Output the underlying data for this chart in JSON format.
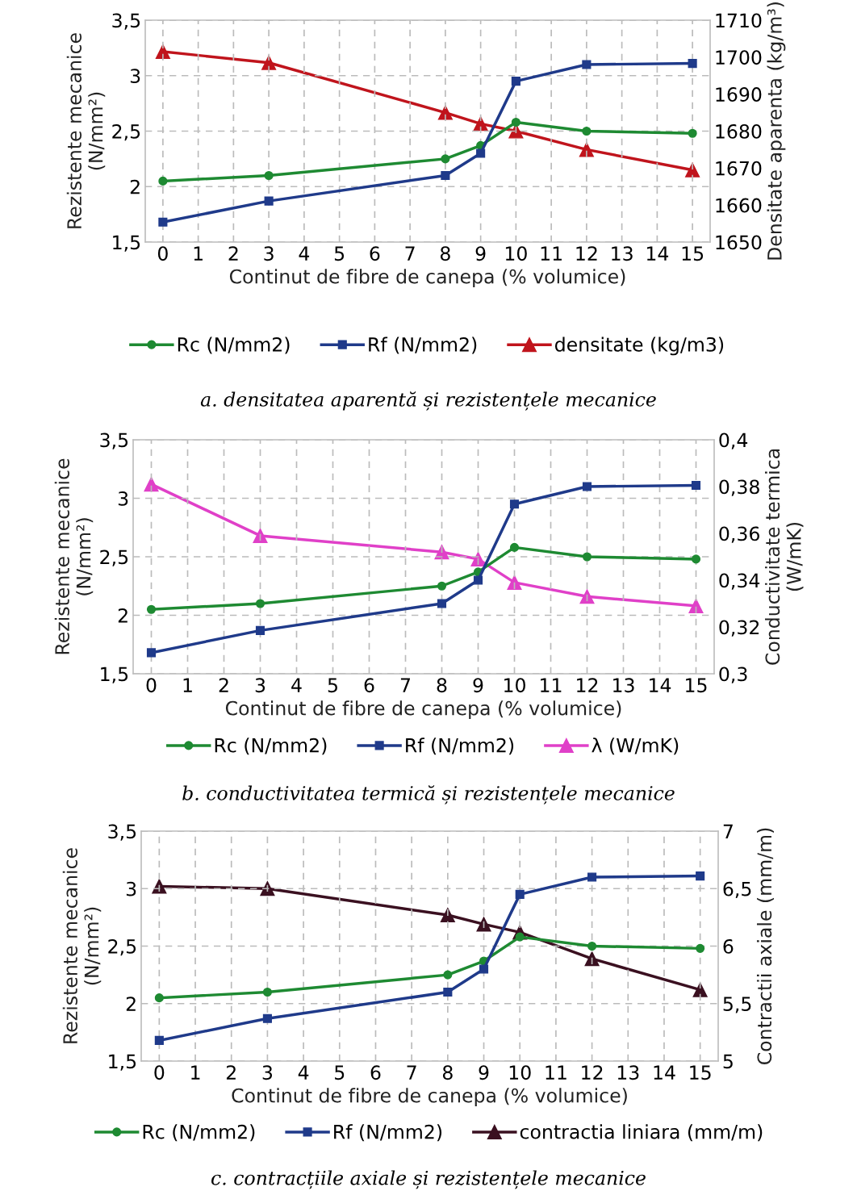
{
  "chart_data": [
    {
      "type": "line",
      "x": [
        0,
        3,
        8,
        9,
        10,
        12,
        15
      ],
      "xlabel": "Continut de fibre de canepa (% volumice)",
      "ylabel": "Rezistente mecanice\n(N/mm²)",
      "y2label": "Densitate aparenta (kg/m³)",
      "xlim": [
        -0.5,
        15.5
      ],
      "xticks": [
        0,
        1,
        2,
        3,
        4,
        5,
        6,
        7,
        8,
        9,
        10,
        11,
        12,
        13,
        14,
        15
      ],
      "ylim": [
        1.5,
        3.5
      ],
      "yticks": [
        {
          "value": 1.5,
          "label": "1,5"
        },
        2,
        {
          "value": 2.5,
          "label": "2,5"
        },
        3,
        {
          "value": 3.5,
          "label": "3,5"
        }
      ],
      "y2lim": [
        1650,
        1710
      ],
      "y2ticks": [
        1650,
        1660,
        1670,
        1680,
        1690,
        1700,
        1710
      ],
      "grid": true,
      "legend": "bottom",
      "line_style": "solid",
      "series": [
        {
          "name": "Rc (N/mm2)",
          "color": "#1e8a32",
          "marker": "circle",
          "values": [
            2.05,
            2.1,
            2.25,
            2.37,
            2.58,
            2.5,
            2.48
          ]
        },
        {
          "name": "Rf (N/mm2)",
          "color": "#1f3a8a",
          "marker": "square",
          "values": [
            1.68,
            1.87,
            2.1,
            2.3,
            2.95,
            3.1,
            3.11
          ]
        },
        {
          "name": "densitate (kg/m3)",
          "color": "#c0141c",
          "marker": "triangle",
          "axis": "y2",
          "values": [
            1701.5,
            1698.5,
            1685,
            1682,
            1680,
            1675,
            1669.5
          ]
        }
      ],
      "annotations": [
        "a. densitatea aparentă și rezistențele mecanice"
      ]
    },
    {
      "type": "line",
      "x": [
        0,
        3,
        8,
        9,
        10,
        12,
        15
      ],
      "xlabel": "Continut de fibre de canepa (% volumice)",
      "ylabel": "Rezistente mecanice\n(N/mm²)",
      "y2label": "Conductivitate termica\n(W/mK)",
      "xlim": [
        -0.5,
        15.5
      ],
      "xticks": [
        0,
        1,
        2,
        3,
        4,
        5,
        6,
        7,
        8,
        9,
        10,
        11,
        12,
        13,
        14,
        15
      ],
      "ylim": [
        1.5,
        3.5
      ],
      "yticks": [
        {
          "value": 1.5,
          "label": "1,5"
        },
        2,
        {
          "value": 2.5,
          "label": "2,5"
        },
        3,
        {
          "value": 3.5,
          "label": "3,5"
        }
      ],
      "y2lim": [
        0.3,
        0.4
      ],
      "y2ticks": [
        {
          "value": 0.3,
          "label": "0,3"
        },
        {
          "value": 0.32,
          "label": "0,32"
        },
        {
          "value": 0.34,
          "label": "0,34"
        },
        {
          "value": 0.36,
          "label": "0,36"
        },
        {
          "value": 0.38,
          "label": "0,38"
        },
        {
          "value": 0.4,
          "label": "0,4"
        }
      ],
      "grid": true,
      "legend": "bottom",
      "line_style": "solid",
      "series": [
        {
          "name": "Rc (N/mm2)",
          "color": "#1e8a32",
          "marker": "circle",
          "values": [
            2.05,
            2.1,
            2.25,
            2.37,
            2.58,
            2.5,
            2.48
          ]
        },
        {
          "name": "Rf (N/mm2)",
          "color": "#1f3a8a",
          "marker": "square",
          "values": [
            1.68,
            1.87,
            2.1,
            2.3,
            2.95,
            3.1,
            3.11
          ]
        },
        {
          "name": "λ (W/mK)",
          "color": "#e040c8",
          "marker": "triangle",
          "axis": "y2",
          "values": [
            0.381,
            0.359,
            0.352,
            0.349,
            0.339,
            0.333,
            0.329
          ]
        }
      ],
      "annotations": [
        "b. conductivitatea termică și rezistențele mecanice"
      ]
    },
    {
      "type": "line",
      "x": [
        0,
        3,
        8,
        9,
        10,
        12,
        15
      ],
      "xlabel": "Continut de fibre de canepa (% volumice)",
      "ylabel": "Rezistente mecanice\n(N/mm²)",
      "y2label": "Contractii axiale (mm/m)",
      "xlim": [
        -0.5,
        15.5
      ],
      "xticks": [
        0,
        1,
        2,
        3,
        4,
        5,
        6,
        7,
        8,
        9,
        10,
        11,
        12,
        13,
        14,
        15
      ],
      "ylim": [
        1.5,
        3.5
      ],
      "yticks": [
        {
          "value": 1.5,
          "label": "1,5"
        },
        2,
        {
          "value": 2.5,
          "label": "2,5"
        },
        3,
        {
          "value": 3.5,
          "label": "3,5"
        }
      ],
      "y2lim": [
        5,
        7
      ],
      "y2ticks": [
        5,
        {
          "value": 5.5,
          "label": "5,5"
        },
        6,
        {
          "value": 6.5,
          "label": "6,5"
        },
        7
      ],
      "grid": true,
      "legend": "bottom",
      "line_style": "solid",
      "series": [
        {
          "name": "Rc (N/mm2)",
          "color": "#1e8a32",
          "marker": "circle",
          "values": [
            2.05,
            2.1,
            2.25,
            2.37,
            2.58,
            2.5,
            2.48
          ]
        },
        {
          "name": "Rf (N/mm2)",
          "color": "#1f3a8a",
          "marker": "square",
          "values": [
            1.68,
            1.87,
            2.1,
            2.3,
            2.95,
            3.1,
            3.11
          ]
        },
        {
          "name": "contractia liniara (mm/m)",
          "color": "#3a1020",
          "marker": "triangle",
          "axis": "y2",
          "values": [
            6.52,
            6.5,
            6.27,
            6.19,
            6.12,
            5.89,
            5.62
          ]
        }
      ],
      "annotations": [
        "c. contracțiile axiale și rezistențele mecanice"
      ]
    }
  ]
}
